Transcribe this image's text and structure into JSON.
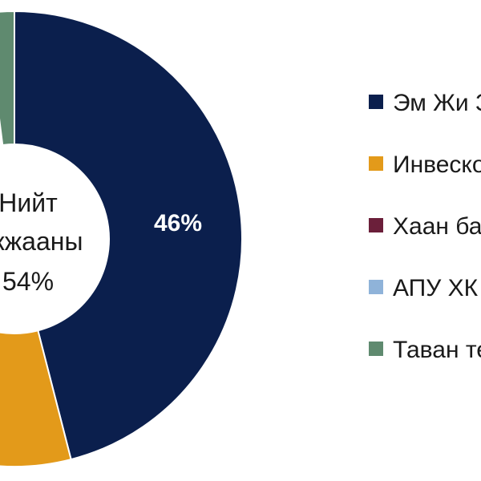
{
  "chart_data": {
    "type": "pie",
    "title": "",
    "center_label": {
      "line1": "Нийт",
      "line2": "ажжааны",
      "line3": "54%"
    },
    "slices": [
      {
        "name": "Эм Жи З",
        "value": 46,
        "label": "46%",
        "color": "#0b1f4d"
      },
      {
        "name": "Инвеско",
        "value": 7,
        "label": "",
        "color": "#e39a1a"
      },
      {
        "name": "Хаан ба",
        "value": 0,
        "label": "",
        "color": "#6b1f3a"
      },
      {
        "name": "АПУ ХК",
        "value": 0,
        "label": "",
        "color": "#8fb3d9"
      },
      {
        "name": "Таван те",
        "value": 2,
        "label": "",
        "color": "#5f8a6f"
      }
    ],
    "legend": {
      "placement": "right",
      "entries": [
        "Эм Жи З",
        "Инвеско",
        "Хаан ба",
        "АПУ ХК",
        "Таван те"
      ]
    }
  }
}
